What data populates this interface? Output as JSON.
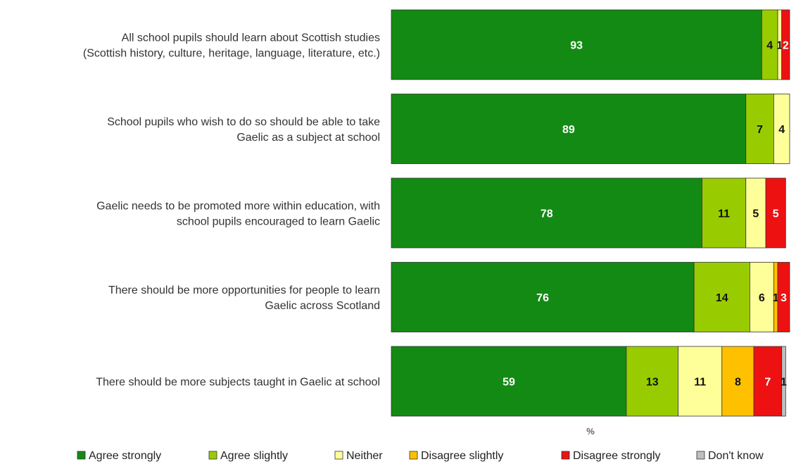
{
  "chart_data": {
    "type": "bar",
    "orientation": "horizontal",
    "stacked": true,
    "xlabel": "%",
    "xlim": [
      0,
      100
    ],
    "grid": false,
    "legend_position": "bottom",
    "categories": [
      [
        "All school pupils should learn about Scottish studies",
        "(Scottish history, culture, heritage, language, literature, etc.)"
      ],
      [
        "School pupils who wish to do so should be able to take",
        "Gaelic as a subject at school"
      ],
      [
        "Gaelic needs to be promoted more within education, with",
        "school pupils encouraged to learn Gaelic"
      ],
      [
        "There should be more opportunities for people to learn",
        "Gaelic across Scotland"
      ],
      [
        "There should be more subjects taught in Gaelic at school"
      ]
    ],
    "series": [
      {
        "name": "Agree strongly",
        "color": "#138a13",
        "label_color": "#ffffff",
        "values": [
          93,
          89,
          78,
          76,
          59
        ]
      },
      {
        "name": "Agree slightly",
        "color": "#99cc00",
        "label_color": "#111111",
        "values": [
          4,
          7,
          11,
          14,
          13
        ]
      },
      {
        "name": "Neither",
        "color": "#ffff99",
        "label_color": "#111111",
        "values": [
          1,
          4,
          5,
          6,
          11
        ]
      },
      {
        "name": "Disagree slightly",
        "color": "#ffc000",
        "label_color": "#111111",
        "values": [
          0,
          0,
          0,
          1,
          8
        ]
      },
      {
        "name": "Disagree strongly",
        "color": "#ee1111",
        "label_color": "#ffffff",
        "values": [
          2,
          0,
          5,
          3,
          7
        ]
      },
      {
        "name": "Don't know",
        "color": "#bfbfbf",
        "label_color": "#111111",
        "values": [
          0,
          0,
          0,
          0,
          1
        ]
      }
    ],
    "data_labels": [
      [
        "93",
        "4",
        "1",
        "",
        "2",
        ""
      ],
      [
        "89",
        "7",
        "4",
        "",
        "",
        ""
      ],
      [
        "78",
        "11",
        "5",
        "",
        "5",
        ""
      ],
      [
        "76",
        "14",
        "6",
        "1",
        "3",
        ""
      ],
      [
        "59",
        "13",
        "11",
        "8",
        "7",
        "1"
      ]
    ]
  }
}
